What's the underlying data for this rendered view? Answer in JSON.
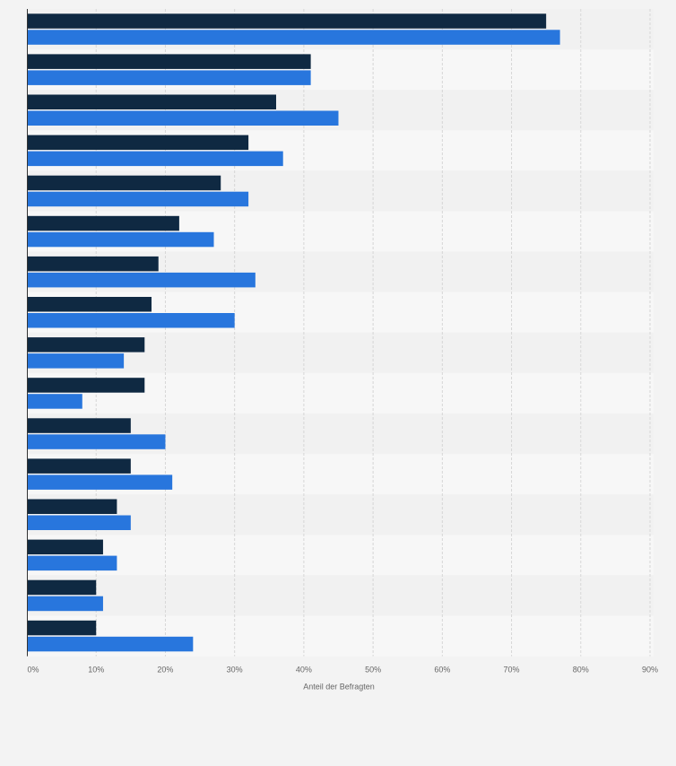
{
  "chart_data": {
    "type": "bar",
    "orientation": "horizontal",
    "title": "",
    "xlabel": "Anteil der Befragten",
    "ylabel": "",
    "xlim": [
      0,
      90
    ],
    "x_tick_labels": [
      "0%",
      "10%",
      "20%",
      "30%",
      "40%",
      "50%",
      "60%",
      "70%",
      "80%",
      "90%"
    ],
    "grid": "vertical-dashed",
    "legend": "none",
    "categories": [
      "",
      "",
      "",
      "",
      "",
      "",
      "",
      "",
      "",
      "",
      "",
      "",
      "",
      "",
      "",
      ""
    ],
    "series": [
      {
        "color": "#0f2942",
        "values": [
          75,
          41,
          36,
          32,
          28,
          22,
          19,
          18,
          17,
          17,
          15,
          15,
          13,
          11,
          10,
          10
        ]
      },
      {
        "color": "#2876dd",
        "values": [
          77,
          41,
          45,
          37,
          32,
          27,
          33,
          30,
          14,
          8,
          20,
          21,
          15,
          13,
          11,
          24
        ]
      }
    ]
  },
  "colors": {
    "background": "#f3f3f3",
    "band_light": "#f7f7f7",
    "band_dark": "#f1f1f1",
    "grid": "#d6d6d6",
    "axis": "#333333",
    "tick_text": "#666666"
  }
}
